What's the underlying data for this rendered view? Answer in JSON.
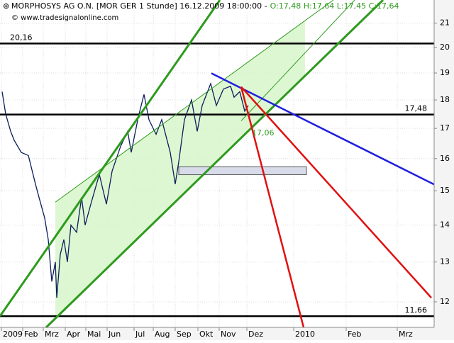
{
  "chart_data": {
    "type": "line",
    "title": "MORPHOSYS AG O.N. [MOR GER  1 Stunde] 16.12.2009 18:00:00 -",
    "ohlc": "O:17,48 H:17,64 L:17,45 C:17,64",
    "source": "© www.tradesignalonline.com",
    "log_scale": true,
    "grid": true,
    "xlim": [
      0,
      612
    ],
    "ylim": [
      11.4,
      22
    ],
    "yticks": [
      12,
      13,
      14,
      15,
      16,
      17,
      18,
      19,
      20,
      21
    ],
    "xticks": [
      {
        "value": 2,
        "label": "2009"
      },
      {
        "value": 32,
        "label": "Feb"
      },
      {
        "value": 61,
        "label": "Mrz"
      },
      {
        "value": 92,
        "label": "Apr"
      },
      {
        "value": 121,
        "label": "Mai"
      },
      {
        "value": 151,
        "label": "Jun"
      },
      {
        "value": 189,
        "label": "Jul"
      },
      {
        "value": 216,
        "label": "Aug"
      },
      {
        "value": 247,
        "label": "Sep"
      },
      {
        "value": 279,
        "label": "Okt"
      },
      {
        "value": 309,
        "label": "Nov"
      },
      {
        "value": 348,
        "label": "Dez"
      },
      {
        "value": 414,
        "label": "2010"
      },
      {
        "value": 488,
        "label": "Feb"
      },
      {
        "value": 560,
        "label": "Mrz"
      }
    ],
    "series": [
      {
        "color": "#0a1e5a",
        "x": [
          3,
          8,
          15,
          20,
          30,
          40,
          50,
          55,
          63,
          68,
          73,
          78,
          80,
          85,
          90,
          95,
          100,
          108,
          115,
          120,
          128,
          140,
          150,
          158,
          170,
          180,
          185,
          195,
          203,
          210,
          220,
          228,
          240,
          247,
          252,
          260,
          270,
          278,
          285,
          297,
          305,
          315,
          325,
          330,
          338,
          345,
          350
        ],
        "values": [
          18.3,
          17.5,
          16.9,
          16.6,
          16.2,
          16.1,
          15.2,
          14.8,
          14.2,
          13.6,
          12.5,
          13.0,
          12.1,
          13.2,
          13.6,
          13.0,
          14.0,
          13.8,
          14.8,
          14.0,
          14.6,
          15.5,
          14.6,
          15.6,
          16.4,
          16.9,
          16.2,
          17.4,
          18.2,
          17.3,
          16.8,
          17.3,
          16.2,
          15.2,
          15.9,
          17.3,
          18.0,
          16.9,
          17.8,
          18.6,
          17.8,
          18.4,
          18.5,
          18.1,
          18.3,
          17.6,
          17.8
        ]
      }
    ],
    "lines": [
      {
        "color": "#2e9a1e",
        "width": 3,
        "x": [
          65,
          540
        ],
        "values": [
          11.4,
          22
        ]
      },
      {
        "color": "#2e9a1e",
        "width": 3,
        "x": [
          0,
          310
        ],
        "values": [
          11.66,
          22
        ]
      },
      {
        "color": "#2e9a1e",
        "width": 1,
        "x": [
          78,
          470
        ],
        "values": [
          14.66,
          22
        ]
      },
      {
        "color": "#2e9a1e",
        "width": 1,
        "x": [
          340,
          500
        ],
        "values": [
          17.26,
          22
        ]
      },
      {
        "color": "#1f1fe0",
        "width": 2.5,
        "x": [
          298,
          612
        ],
        "values": [
          18.99,
          15.19
        ]
      },
      {
        "color": "#e01010",
        "width": 2.5,
        "x": [
          340,
          428
        ],
        "values": [
          18.48,
          11.4
        ]
      },
      {
        "color": "#e01010",
        "width": 2.5,
        "x": [
          340,
          608
        ],
        "values": [
          18.48,
          12.1
        ]
      }
    ],
    "levels": [
      {
        "value": 20.16,
        "label": "20,16"
      },
      {
        "value": 17.48,
        "label": "17,48"
      },
      {
        "value": 11.66,
        "label": "11,66"
      }
    ],
    "zone": {
      "x": [
        252,
        432
      ],
      "values": [
        15.74,
        15.49
      ]
    },
    "annotation": {
      "text": "17,06",
      "color": "#2e9a1e"
    }
  }
}
